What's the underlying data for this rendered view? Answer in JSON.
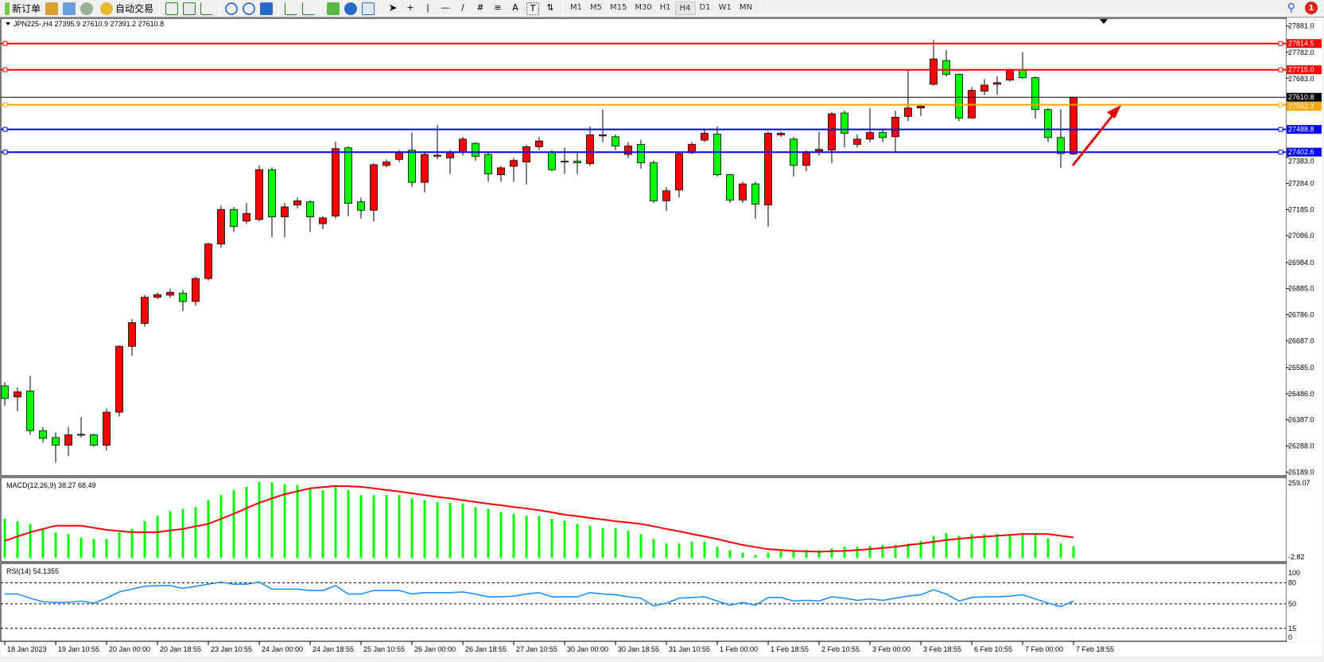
{
  "toolbar": {
    "new_order": "新订单",
    "auto_trading": "自动交易",
    "timeframes": [
      "M1",
      "M5",
      "M15",
      "M30",
      "H1",
      "H4",
      "D1",
      "W1",
      "MN"
    ],
    "active_timeframe": "H4",
    "notification_count": "1",
    "icons": [
      "navigator-icon",
      "terminal-icon",
      "signals-icon",
      "bar-chart-icon",
      "candlestick-icon",
      "line-chart-icon",
      "zoom-in-icon",
      "zoom-out-icon",
      "tile-windows-icon",
      "auto-scroll-icon",
      "chart-shift-icon",
      "indicators-icon",
      "periods-icon",
      "templates-icon",
      "cursor-icon",
      "crosshair-icon",
      "vertical-line-icon",
      "horizontal-line-icon",
      "trendline-icon",
      "equidistant-channel-icon",
      "fibonacci-icon",
      "text-icon",
      "text-label-icon",
      "arrows-icon"
    ]
  },
  "chart": {
    "header": "JPN225-,H4  27395.9 27610.9 27391.2 27610.8",
    "colors": {
      "bull": "#ff0000",
      "bear": "#00ff00",
      "wick": "#000000",
      "macd_hist": "#00ff00",
      "macd_signal": "#ff0000",
      "rsi": "#1e90ff"
    },
    "price_ticks": [
      "27881.0",
      "27782.0",
      "27683.0",
      "27383.0",
      "27284.0",
      "27185.0",
      "27086.0",
      "26984.0",
      "26885.0",
      "26786.0",
      "26687.0",
      "26585.0",
      "26486.0",
      "26387.0",
      "26288.0",
      "26189.0"
    ],
    "current_price": "27610.8",
    "levels": [
      {
        "price": "27814.5",
        "color": "#ff0000"
      },
      {
        "price": "27715.0",
        "color": "#ff0000"
      },
      {
        "price": "27582.3",
        "color": "#ffa500"
      },
      {
        "price": "27488.8",
        "color": "#0000ff"
      },
      {
        "price": "27402.6",
        "color": "#0000ff"
      }
    ],
    "time_labels": [
      "18 Jan 2023",
      "19 Jan 10:55",
      "20 Jan 00:00",
      "20 Jan 18:55",
      "23 Jan 10:55",
      "24 Jan 00:00",
      "24 Jan 18:55",
      "25 Jan 10:55",
      "26 Jan 00:00",
      "26 Jan 18:55",
      "27 Jan 10:55",
      "30 Jan 00:00",
      "30 Jan 18:55",
      "31 Jan 10:55",
      "1 Feb 00:00",
      "1 Feb 18:55",
      "2 Feb 10:55",
      "3 Feb 00:00",
      "3 Feb 18:55",
      "6 Feb 10:55",
      "7 Feb 00:00",
      "7 Feb 18:55"
    ],
    "candles_ohlc": [
      [
        26516,
        26530,
        26440,
        26468
      ],
      [
        26474,
        26510,
        26420,
        26493
      ],
      [
        26496,
        26554,
        26330,
        26346
      ],
      [
        26346,
        26360,
        26300,
        26317
      ],
      [
        26320,
        26340,
        26224,
        26291
      ],
      [
        26291,
        26360,
        26250,
        26330
      ],
      [
        26330,
        26397,
        26320,
        26332
      ],
      [
        26330,
        26335,
        26285,
        26291
      ],
      [
        26291,
        26430,
        26270,
        26416
      ],
      [
        26416,
        26670,
        26400,
        26666
      ],
      [
        26666,
        26769,
        26630,
        26756
      ],
      [
        26753,
        26860,
        26740,
        26852
      ],
      [
        26852,
        26870,
        26845,
        26862
      ],
      [
        26860,
        26885,
        26850,
        26871
      ],
      [
        26868,
        26880,
        26800,
        26836
      ],
      [
        26836,
        26930,
        26820,
        26923
      ],
      [
        26923,
        27060,
        26915,
        27054
      ],
      [
        27054,
        27200,
        27040,
        27185
      ],
      [
        27185,
        27195,
        27100,
        27121
      ],
      [
        27141,
        27210,
        27130,
        27170
      ],
      [
        27147,
        27352,
        27140,
        27336
      ],
      [
        27336,
        27345,
        27080,
        27157
      ],
      [
        27157,
        27210,
        27080,
        27195
      ],
      [
        27202,
        27230,
        27190,
        27218
      ],
      [
        27214,
        27220,
        27100,
        27157
      ],
      [
        27131,
        27160,
        27110,
        27153
      ],
      [
        27160,
        27442,
        27150,
        27416
      ],
      [
        27419,
        27425,
        27160,
        27208
      ],
      [
        27214,
        27230,
        27150,
        27182
      ],
      [
        27182,
        27360,
        27140,
        27355
      ],
      [
        27352,
        27375,
        27345,
        27365
      ],
      [
        27375,
        27410,
        27365,
        27400
      ],
      [
        27410,
        27477,
        27270,
        27288
      ],
      [
        27288,
        27400,
        27250,
        27394
      ],
      [
        27387,
        27506,
        27375,
        27391
      ],
      [
        27381,
        27410,
        27320,
        27403
      ],
      [
        27403,
        27460,
        27390,
        27452
      ],
      [
        27436,
        27440,
        27370,
        27387
      ],
      [
        27394,
        27400,
        27290,
        27320
      ],
      [
        27317,
        27350,
        27290,
        27343
      ],
      [
        27349,
        27380,
        27290,
        27371
      ],
      [
        27365,
        27430,
        27280,
        27423
      ],
      [
        27423,
        27460,
        27410,
        27445
      ],
      [
        27403,
        27410,
        27330,
        27336
      ],
      [
        27365,
        27420,
        27320,
        27368
      ],
      [
        27368,
        27400,
        27320,
        27362
      ],
      [
        27359,
        27500,
        27350,
        27468
      ],
      [
        27464,
        27564,
        27440,
        27468
      ],
      [
        27461,
        27470,
        27410,
        27426
      ],
      [
        27394,
        27440,
        27380,
        27426
      ],
      [
        27432,
        27450,
        27340,
        27362
      ],
      [
        27362,
        27370,
        27210,
        27218
      ],
      [
        27218,
        27270,
        27180,
        27256
      ],
      [
        27259,
        27400,
        27230,
        27397
      ],
      [
        27400,
        27440,
        27395,
        27432
      ],
      [
        27448,
        27490,
        27440,
        27474
      ],
      [
        27471,
        27500,
        27310,
        27317
      ],
      [
        27317,
        27320,
        27210,
        27221
      ],
      [
        27221,
        27290,
        27210,
        27282
      ],
      [
        27282,
        27290,
        27150,
        27205
      ],
      [
        27202,
        27480,
        27120,
        27474
      ],
      [
        27468,
        27480,
        27460,
        27474
      ],
      [
        27452,
        27460,
        27310,
        27352
      ],
      [
        27352,
        27410,
        27330,
        27400
      ],
      [
        27407,
        27480,
        27390,
        27413
      ],
      [
        27410,
        27555,
        27360,
        27548
      ],
      [
        27551,
        27560,
        27420,
        27474
      ],
      [
        27432,
        27470,
        27420,
        27452
      ],
      [
        27452,
        27570,
        27440,
        27477
      ],
      [
        27477,
        27490,
        27440,
        27458
      ],
      [
        27461,
        27560,
        27400,
        27535
      ],
      [
        27538,
        27718,
        27520,
        27570
      ],
      [
        27570,
        27585,
        27540,
        27577
      ],
      [
        27660,
        27827,
        27655,
        27756
      ],
      [
        27750,
        27790,
        27690,
        27698
      ],
      [
        27698,
        27700,
        27520,
        27532
      ],
      [
        27532,
        27650,
        27530,
        27637
      ],
      [
        27634,
        27680,
        27620,
        27657
      ],
      [
        27660,
        27690,
        27620,
        27666
      ],
      [
        27676,
        27720,
        27670,
        27714
      ],
      [
        27714,
        27782,
        27680,
        27685
      ],
      [
        27685,
        27690,
        27530,
        27564
      ],
      [
        27564,
        27570,
        27440,
        27458
      ],
      [
        27458,
        27565,
        27343,
        27397
      ],
      [
        27395.9,
        27610.9,
        27391.2,
        27610.8
      ]
    ]
  },
  "macd": {
    "label": "MACD(12,26,9) 38.27 68.49",
    "axis_max": "259.07",
    "axis_min": "-2.82",
    "histogram": [
      131,
      123,
      114,
      97,
      85,
      80,
      68,
      63,
      63,
      85,
      97,
      123,
      142,
      157,
      165,
      171,
      194,
      211,
      228,
      239,
      256,
      254,
      248,
      245,
      237,
      228,
      242,
      228,
      211,
      211,
      211,
      211,
      200,
      194,
      188,
      185,
      182,
      171,
      165,
      154,
      148,
      142,
      142,
      131,
      125,
      114,
      108,
      100,
      100,
      91,
      80,
      63,
      48,
      48,
      54,
      54,
      37,
      26,
      17,
      9,
      17,
      23,
      26,
      26,
      26,
      31,
      37,
      37,
      40,
      43,
      43,
      48,
      57,
      74,
      83,
      74,
      80,
      80,
      80,
      80,
      83,
      80,
      66,
      48,
      38.27
    ],
    "signal": [
      57,
      72,
      86,
      97,
      108,
      108,
      108,
      101,
      94,
      90,
      86,
      86,
      86,
      92,
      97,
      106,
      114,
      131,
      148,
      167,
      185,
      200,
      214,
      224,
      234,
      238,
      242,
      241,
      239,
      234,
      228,
      223,
      217,
      211,
      205,
      200,
      194,
      188,
      182,
      177,
      171,
      166,
      160,
      153,
      145,
      140,
      134,
      129,
      123,
      119,
      114,
      106,
      97,
      89,
      80,
      72,
      63,
      53,
      43,
      36,
      29,
      26,
      23,
      22,
      20,
      22,
      23,
      26,
      29,
      33,
      37,
      43,
      48,
      54,
      60,
      64,
      68,
      71,
      74,
      77,
      80,
      80,
      80,
      74,
      68.49
    ]
  },
  "rsi": {
    "label": "RSI(14) 54.1355",
    "levels": [
      "100",
      "80",
      "50",
      "15",
      "0"
    ],
    "values": [
      64,
      64,
      58,
      53,
      52,
      52,
      54,
      51,
      58,
      67,
      71,
      75,
      76,
      76,
      72,
      75,
      78,
      81,
      78,
      78,
      81,
      71,
      71,
      71,
      69,
      69,
      76,
      64,
      64,
      69,
      69,
      69,
      64,
      66,
      66,
      66,
      67,
      64,
      60,
      60,
      61,
      64,
      66,
      60,
      60,
      60,
      66,
      64,
      63,
      60,
      58,
      47,
      51,
      58,
      59,
      60,
      54,
      48,
      52,
      48,
      59,
      59,
      54,
      55,
      54,
      60,
      58,
      55,
      57,
      55,
      58,
      61,
      63,
      70,
      64,
      54,
      59,
      60,
      60,
      61,
      63,
      57,
      51,
      46,
      54.1355
    ]
  }
}
